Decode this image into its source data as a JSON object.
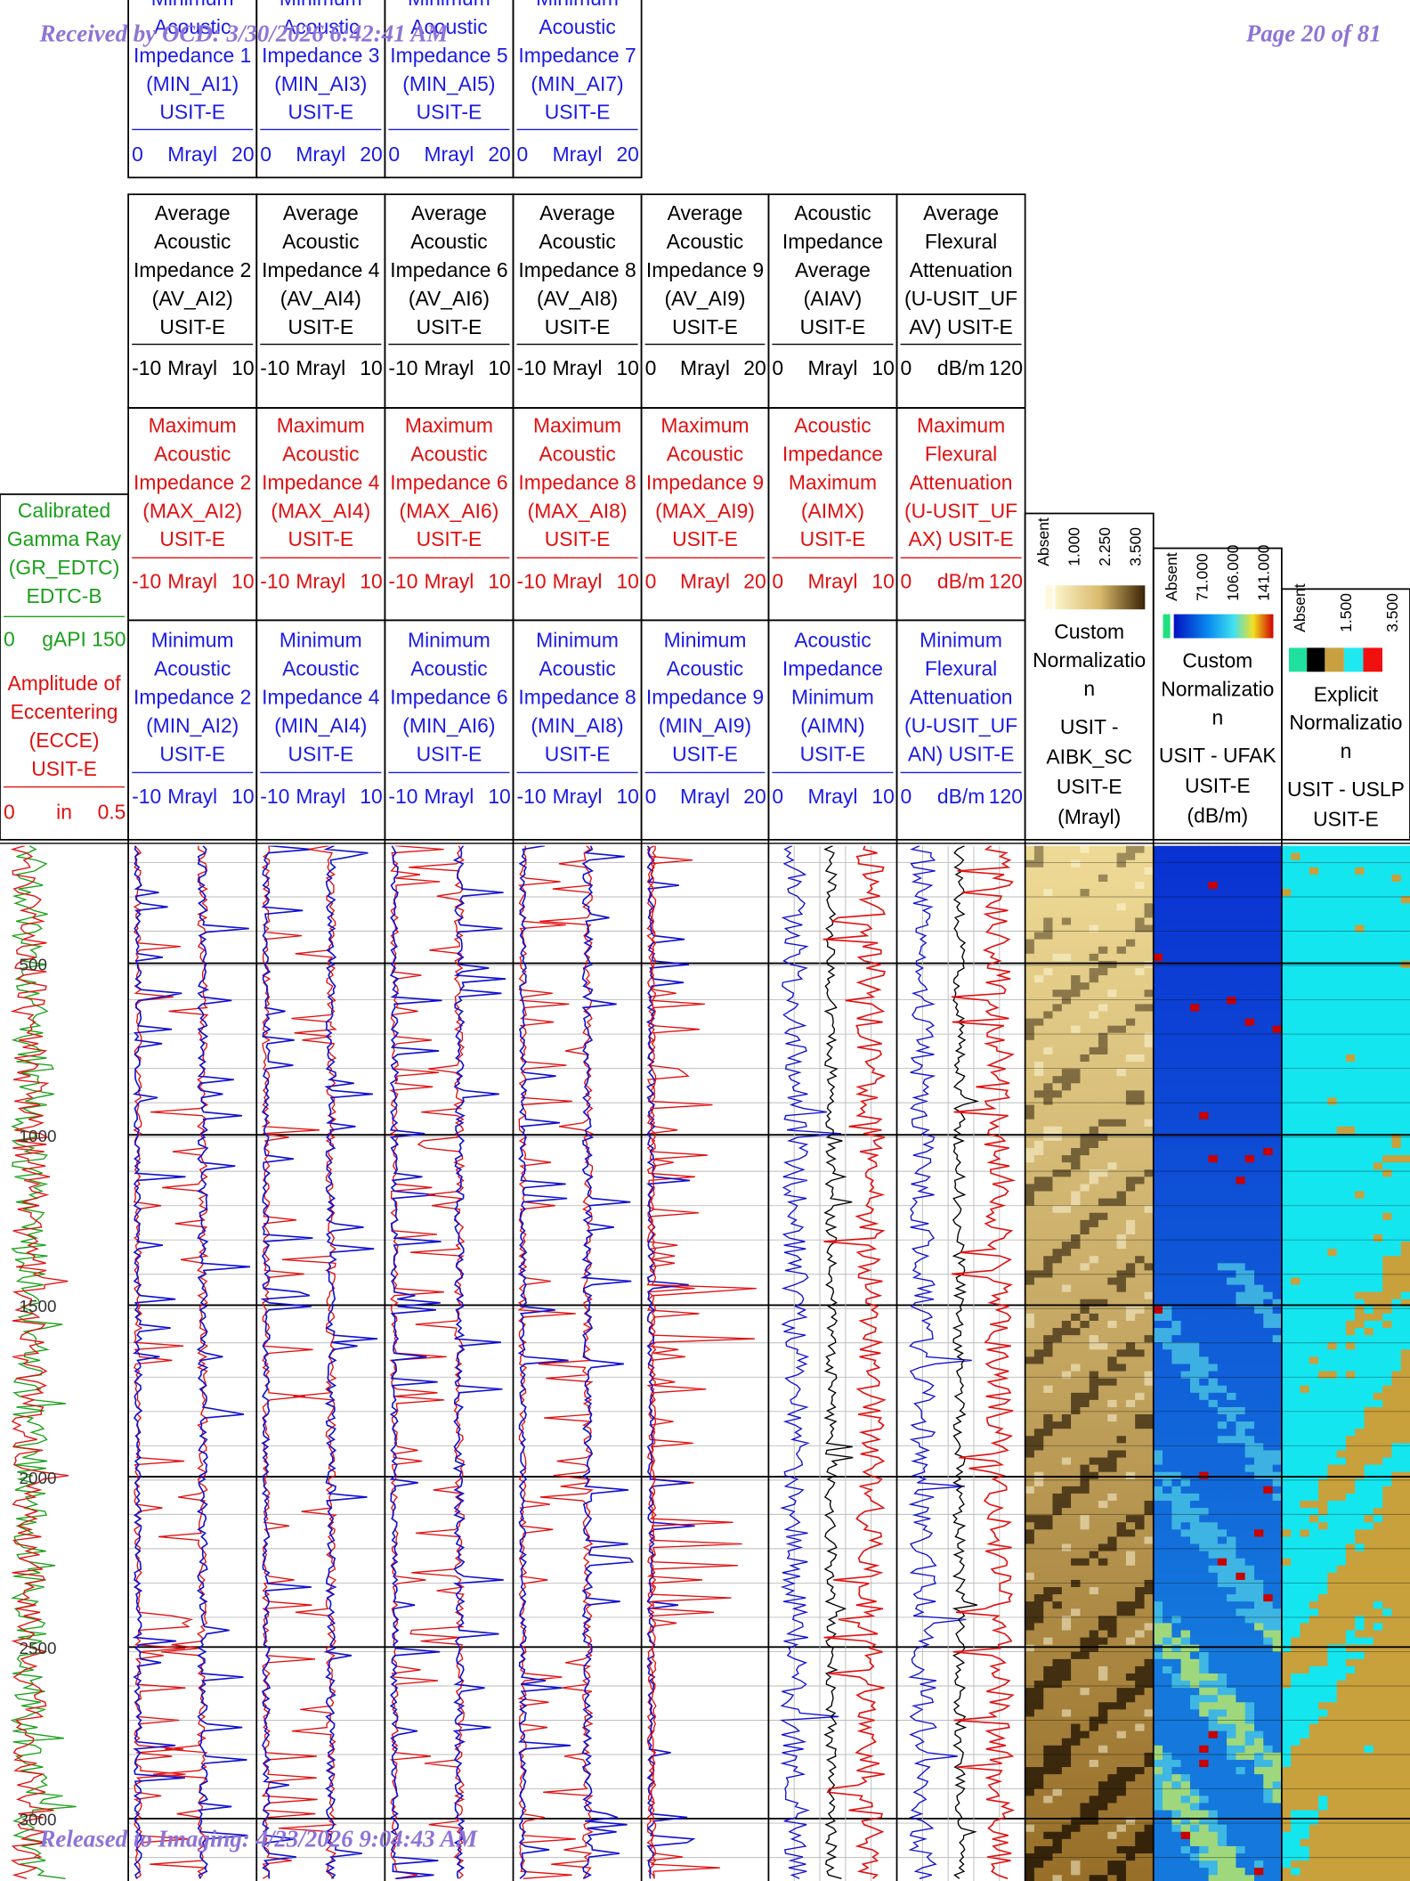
{
  "stamps": {
    "received": "Received by OCD: 3/30/2026 6:42:41 AM",
    "page": "Page 20 of 81",
    "released": "Released to Imaging: 4/23/2026 9:04:43 AM"
  },
  "header": {
    "row_a": [
      {
        "lines": [
          "Minimum",
          "Acoustic",
          "Impedance 1",
          "(MIN_AI1)",
          "USIT-E"
        ],
        "scale": [
          "0",
          "Mrayl",
          "20"
        ]
      },
      {
        "lines": [
          "Minimum",
          "Acoustic",
          "Impedance 3",
          "(MIN_AI3)",
          "USIT-E"
        ],
        "scale": [
          "0",
          "Mrayl",
          "20"
        ]
      },
      {
        "lines": [
          "Minimum",
          "Acoustic",
          "Impedance 5",
          "(MIN_AI5)",
          "USIT-E"
        ],
        "scale": [
          "0",
          "Mrayl",
          "20"
        ]
      },
      {
        "lines": [
          "Minimum",
          "Acoustic",
          "Impedance 7",
          "(MIN_AI7)",
          "USIT-E"
        ],
        "scale": [
          "0",
          "Mrayl",
          "20"
        ]
      }
    ],
    "row_b": [
      {
        "lines": [
          "Average",
          "Acoustic",
          "Impedance 2",
          "(AV_AI2)",
          "USIT-E"
        ],
        "scale": [
          "-10",
          "Mrayl",
          "10"
        ]
      },
      {
        "lines": [
          "Average",
          "Acoustic",
          "Impedance 4",
          "(AV_AI4)",
          "USIT-E"
        ],
        "scale": [
          "-10",
          "Mrayl",
          "10"
        ]
      },
      {
        "lines": [
          "Average",
          "Acoustic",
          "Impedance 6",
          "(AV_AI6)",
          "USIT-E"
        ],
        "scale": [
          "-10",
          "Mrayl",
          "10"
        ]
      },
      {
        "lines": [
          "Average",
          "Acoustic",
          "Impedance 8",
          "(AV_AI8)",
          "USIT-E"
        ],
        "scale": [
          "-10",
          "Mrayl",
          "10"
        ]
      },
      {
        "lines": [
          "Average",
          "Acoustic",
          "Impedance 9",
          "(AV_AI9)",
          "USIT-E"
        ],
        "scale": [
          "0",
          "Mrayl",
          "20"
        ]
      },
      {
        "lines": [
          "Acoustic",
          "Impedance",
          "Average",
          "(AIAV)",
          "USIT-E"
        ],
        "scale": [
          "0",
          "Mrayl",
          "10"
        ]
      },
      {
        "lines": [
          "Average",
          "Flexural",
          "Attenuation",
          "(U-USIT_UF",
          "AV) USIT-E"
        ],
        "scale": [
          "0",
          "dB/m",
          "120"
        ]
      }
    ],
    "row_c": [
      {
        "lines": [
          "Maximum",
          "Acoustic",
          "Impedance 2",
          "(MAX_AI2)",
          "USIT-E"
        ],
        "scale": [
          "-10",
          "Mrayl",
          "10"
        ]
      },
      {
        "lines": [
          "Maximum",
          "Acoustic",
          "Impedance 4",
          "(MAX_AI4)",
          "USIT-E"
        ],
        "scale": [
          "-10",
          "Mrayl",
          "10"
        ]
      },
      {
        "lines": [
          "Maximum",
          "Acoustic",
          "Impedance 6",
          "(MAX_AI6)",
          "USIT-E"
        ],
        "scale": [
          "-10",
          "Mrayl",
          "10"
        ]
      },
      {
        "lines": [
          "Maximum",
          "Acoustic",
          "Impedance 8",
          "(MAX_AI8)",
          "USIT-E"
        ],
        "scale": [
          "-10",
          "Mrayl",
          "10"
        ]
      },
      {
        "lines": [
          "Maximum",
          "Acoustic",
          "Impedance 9",
          "(MAX_AI9)",
          "USIT-E"
        ],
        "scale": [
          "0",
          "Mrayl",
          "20"
        ]
      },
      {
        "lines": [
          "Acoustic",
          "Impedance",
          "Maximum",
          "(AIMX)",
          "USIT-E"
        ],
        "scale": [
          "0",
          "Mrayl",
          "10"
        ]
      },
      {
        "lines": [
          "Maximum",
          "Flexural",
          "Attenuation",
          "(U-USIT_UF",
          "AX) USIT-E"
        ],
        "scale": [
          "0",
          "dB/m",
          "120"
        ]
      }
    ],
    "row_d": [
      {
        "lines": [
          "Minimum",
          "Acoustic",
          "Impedance 2",
          "(MIN_AI2)",
          "USIT-E"
        ],
        "scale": [
          "-10",
          "Mrayl",
          "10"
        ]
      },
      {
        "lines": [
          "Minimum",
          "Acoustic",
          "Impedance 4",
          "(MIN_AI4)",
          "USIT-E"
        ],
        "scale": [
          "-10",
          "Mrayl",
          "10"
        ]
      },
      {
        "lines": [
          "Minimum",
          "Acoustic",
          "Impedance 6",
          "(MIN_AI6)",
          "USIT-E"
        ],
        "scale": [
          "-10",
          "Mrayl",
          "10"
        ]
      },
      {
        "lines": [
          "Minimum",
          "Acoustic",
          "Impedance 8",
          "(MIN_AI8)",
          "USIT-E"
        ],
        "scale": [
          "-10",
          "Mrayl",
          "10"
        ]
      },
      {
        "lines": [
          "Minimum",
          "Acoustic",
          "Impedance 9",
          "(MIN_AI9)",
          "USIT-E"
        ],
        "scale": [
          "0",
          "Mrayl",
          "20"
        ]
      },
      {
        "lines": [
          "Acoustic",
          "Impedance",
          "Minimum",
          "(AIMN)",
          "USIT-E"
        ],
        "scale": [
          "0",
          "Mrayl",
          "10"
        ]
      },
      {
        "lines": [
          "Minimum",
          "Flexural",
          "Attenuation",
          "(U-USIT_UF",
          "AN) USIT-E"
        ],
        "scale": [
          "0",
          "dB/m",
          "120"
        ]
      }
    ],
    "left": [
      {
        "lines": [
          "Calibrated",
          "Gamma Ray",
          "(GR_EDTC)",
          "EDTC-B"
        ],
        "scale": [
          "0",
          "gAPI",
          "150"
        ]
      },
      {
        "lines": [
          "Amplitude of",
          "Eccentering",
          "(ECCE)",
          "USIT-E"
        ],
        "scale": [
          "0",
          "in",
          "0.5"
        ]
      }
    ],
    "images": [
      {
        "legend": [
          "Absent",
          "1.000",
          "2.250",
          "3.500"
        ],
        "lines": [
          "Custom",
          "Normalizatio",
          "n",
          "USIT -",
          "AIBK_SC",
          "USIT-E",
          "(Mrayl)"
        ]
      },
      {
        "legend": [
          "Absent",
          "71.000",
          "106.000",
          "141.000"
        ],
        "lines": [
          "Custom",
          "Normalizatio",
          "n",
          "USIT - UFAK",
          "USIT-E",
          "(dB/m)"
        ]
      },
      {
        "legend": [
          "Absent",
          "1.500",
          "3.500"
        ],
        "lines": [
          "Explicit",
          "Normalizatio",
          "n",
          "USIT - USLP",
          "USIT-E"
        ]
      }
    ]
  },
  "depths": [
    "500",
    "1000",
    "1500",
    "2000",
    "2500",
    "3000"
  ]
}
